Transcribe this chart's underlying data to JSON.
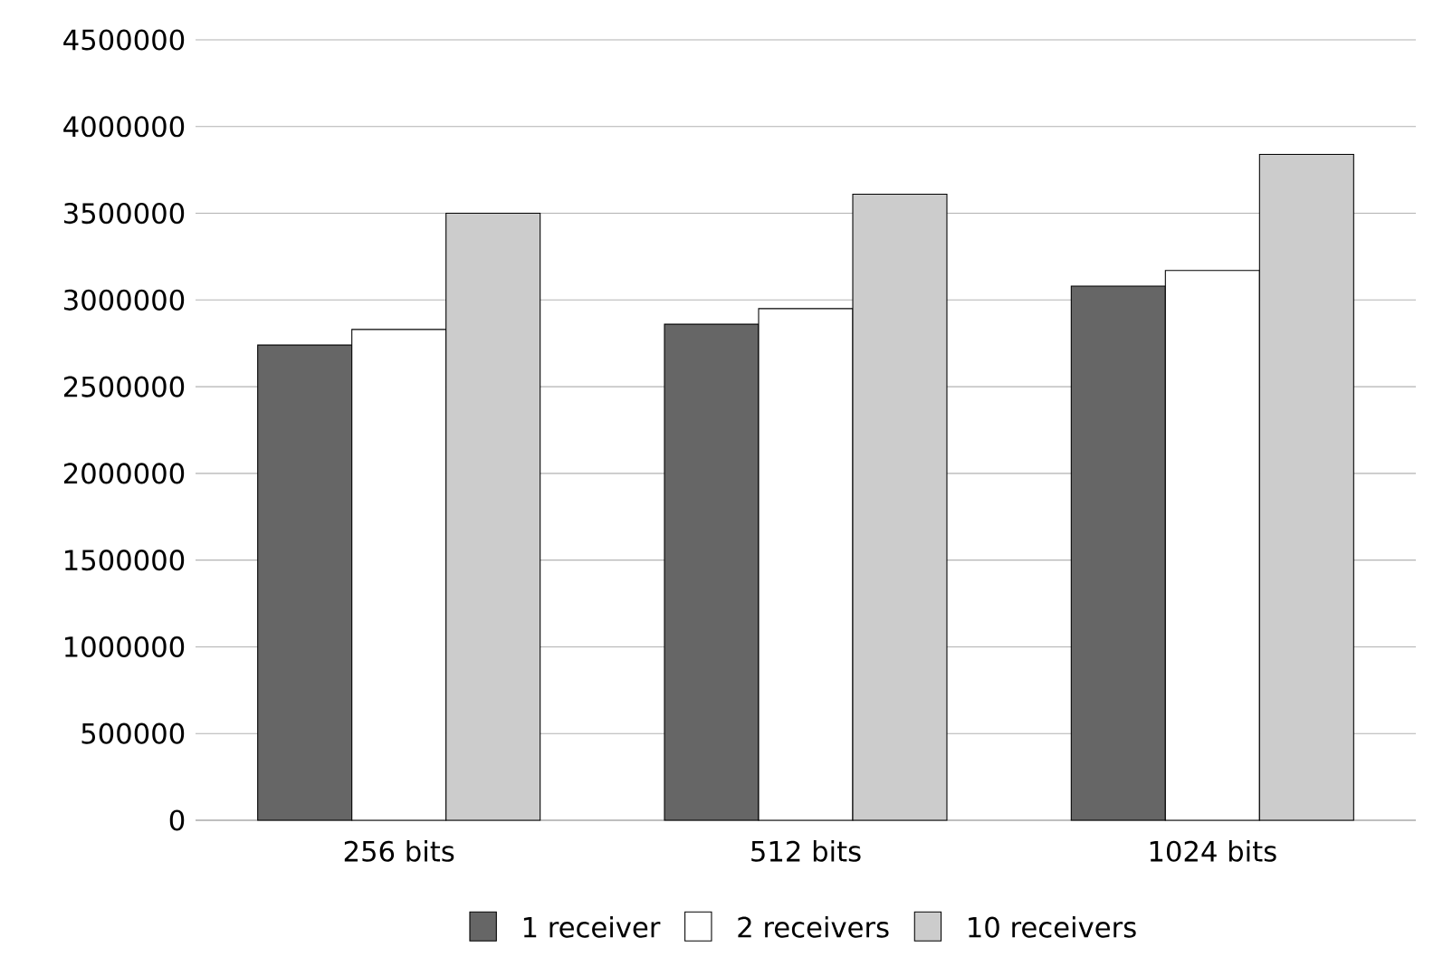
{
  "chart_data": {
    "type": "bar",
    "categories": [
      "256 bits",
      "512 bits",
      "1024 bits"
    ],
    "series": [
      {
        "name": "1 receiver",
        "color": "#666666",
        "values": [
          2740000,
          2860000,
          3080000
        ]
      },
      {
        "name": "2 receivers",
        "color": "#ffffff",
        "values": [
          2830000,
          2950000,
          3170000
        ]
      },
      {
        "name": "10 receivers",
        "color": "#cccccc",
        "values": [
          3500000,
          3610000,
          3840000
        ]
      }
    ],
    "ylim": [
      0,
      4500000
    ],
    "yticks": [
      0,
      500000,
      1000000,
      1500000,
      2000000,
      2500000,
      3000000,
      3500000,
      4000000,
      4500000
    ],
    "grid": "y",
    "legend": "bottom"
  }
}
